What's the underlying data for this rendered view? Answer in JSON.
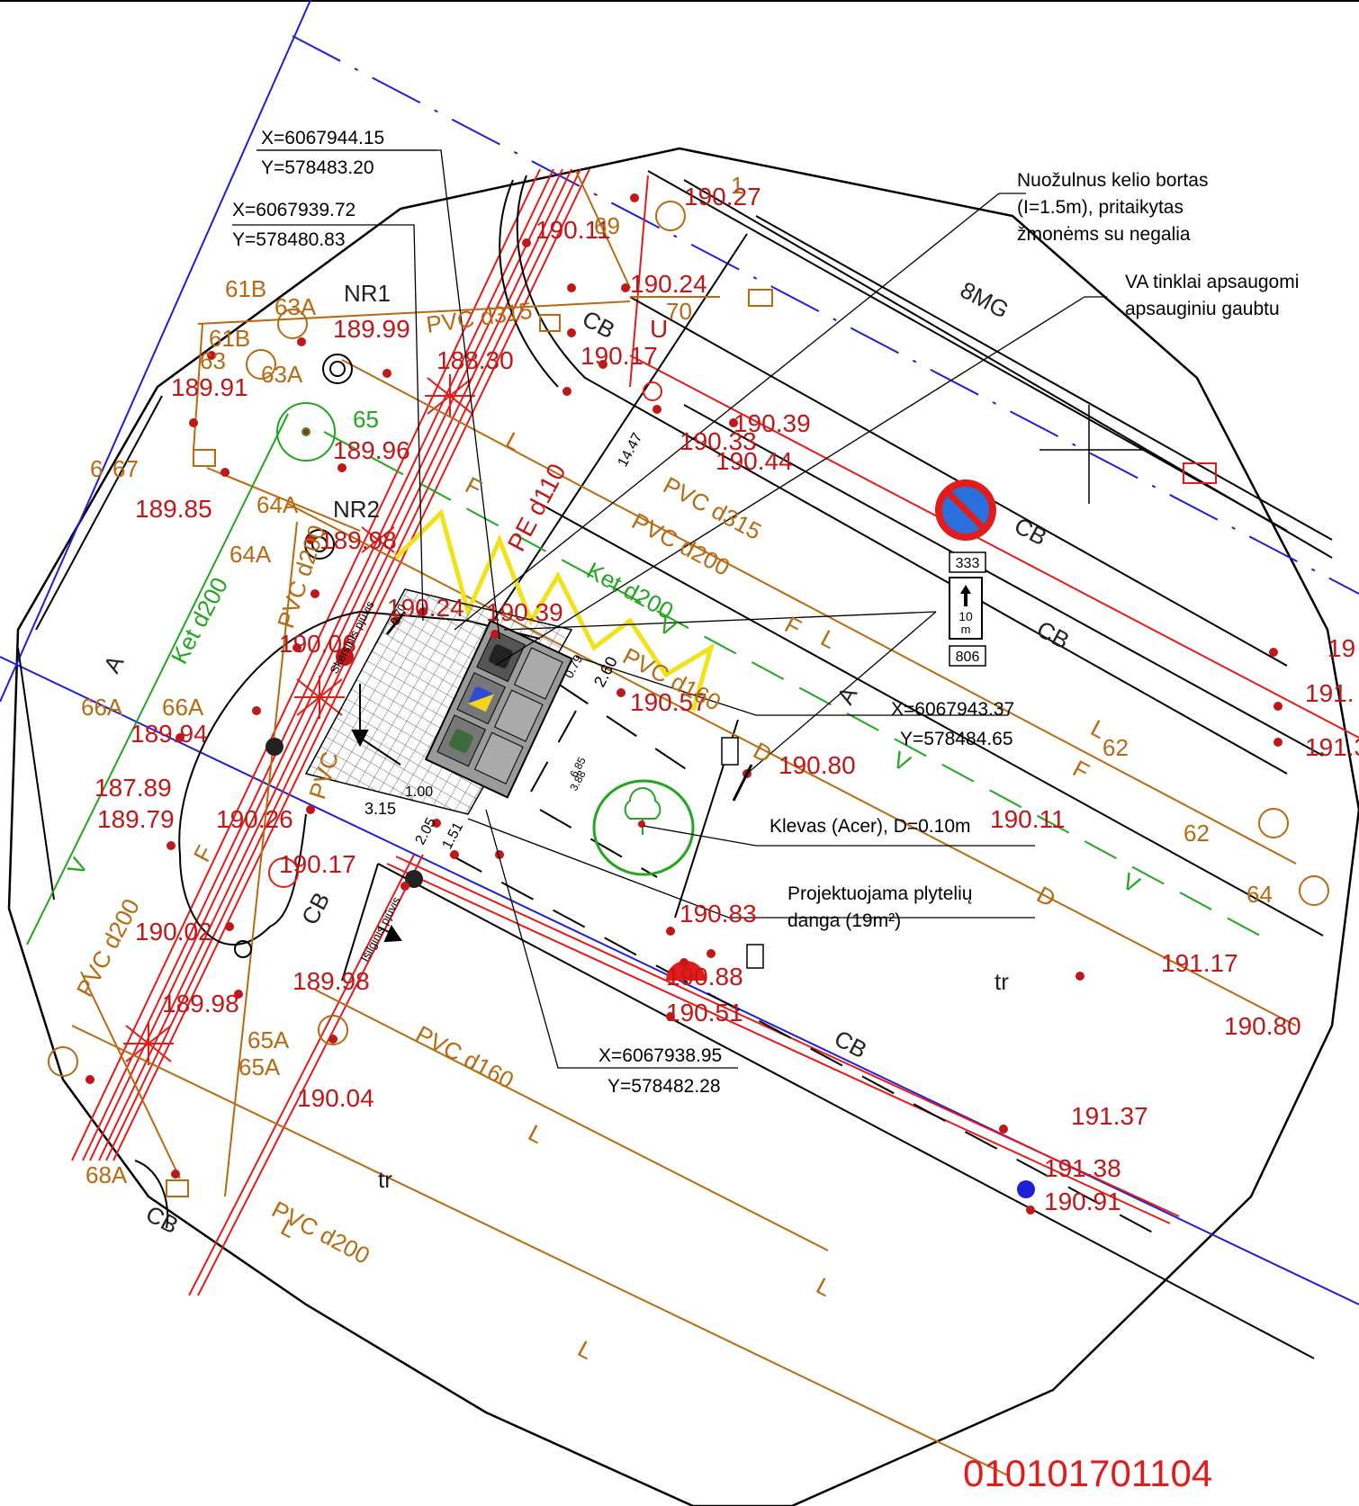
{
  "parcel_id": "010101701104",
  "coordinates": [
    {
      "x": "X=6067944.15",
      "y": "Y=578483.20"
    },
    {
      "x": "X=6067939.72",
      "y": "Y=578480.83"
    },
    {
      "x": "X=6067943.37",
      "y": "Y=578484.65"
    },
    {
      "x": "X=6067938.95",
      "y": "Y=578482.28"
    }
  ],
  "notes": {
    "curb_line1": "Nuožulnus kelio bortas",
    "curb_line2": "(I=1.5m), pritaikytas",
    "curb_line3": "žmonėms su negalia",
    "va_line1": "VA tinklai apsaugomi",
    "va_line2": "apsauginiu gaubtu",
    "tree": "Klevas (Acer), D=0.10m",
    "paving_line1": "Projektuojama plytelių",
    "paving_line2": "danga (19m²)"
  },
  "sign": {
    "top": "333",
    "middle_value": "10",
    "middle_unit": "m",
    "bottom": "806"
  },
  "section_labels": {
    "cross": "Skersinis pjūvis",
    "long": "Išilginis pjūvis"
  },
  "dimensions": [
    "3.15",
    "2.05",
    "1.51",
    "6.85",
    "3.88",
    "2.60",
    "0.79",
    "1.00",
    "14.47",
    "0.70"
  ],
  "elevations": [
    "190.27",
    "190.11",
    "190.24",
    "190.17",
    "190.39",
    "190.33",
    "190.44",
    "189.99",
    "188.30",
    "189.91",
    "189.96",
    "189.85",
    "189.98",
    "190.24",
    "190.39",
    "190.06",
    "190.57",
    "190.80",
    "190.11",
    "189.94",
    "187.89",
    "189.79",
    "190.26",
    "190.17",
    "190.02",
    "189.98",
    "189.98",
    "190.83",
    "190.88",
    "190.51",
    "191.17",
    "190.80",
    "191.37",
    "191.38",
    "190.91",
    "190.04",
    "191.30",
    "191.",
    "19"
  ],
  "utility_labels": {
    "pvc_d315": "PVC d315",
    "pvc_d200": "PVC d200",
    "pvc_d160": "PVC d160",
    "pe_d110": "PE d110",
    "ket_d200": "Ket d200",
    "nr1": "NR1",
    "nr2": "NR2",
    "cb": "CB",
    "mg": "8MG",
    "tr": "tr",
    "A": "A",
    "L": "L",
    "F": "F",
    "V": "V",
    "D": "D",
    "U": "U",
    "pvc": "PVC"
  },
  "point_labels": [
    "61B",
    "63A",
    "61B",
    "63",
    "63A",
    "65",
    "64A",
    "64A",
    "66A",
    "66A",
    "67",
    "6",
    "65A",
    "65A",
    "68A",
    "62",
    "62",
    "64",
    "69",
    "70",
    "1"
  ],
  "colors": {
    "electric": "#e41b1b",
    "brown": "#b86a10",
    "green": "#22a61f",
    "blue": "#1f1fd6",
    "yellow": "#f2e21a"
  }
}
